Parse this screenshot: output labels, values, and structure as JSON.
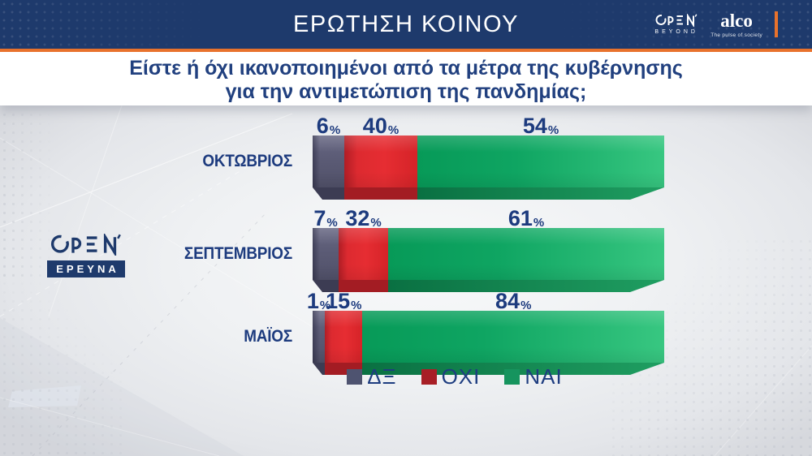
{
  "header": {
    "title": "ΕΡΩΤΗΣΗ ΚΟΙΝΟΥ",
    "open_logo": {
      "name": "OPEN",
      "sub": "BEYOND"
    },
    "alco_logo": {
      "name": "alco",
      "tagline": "The pulse of society"
    }
  },
  "question": {
    "line1": "Είστε ή όχι ικανοποιημένοι από τα μέτρα της κυβέρνησης",
    "line2": "για την αντιμετώπιση της πανδημίας;"
  },
  "side_logo": {
    "name": "OPEN",
    "badge": "ΕΡΕΥΝΑ"
  },
  "chart_data": {
    "type": "bar",
    "subtype": "horizontal-stacked",
    "title": "Είστε ή όχι ικανοποιημένοι από τα μέτρα της κυβέρνησης για την αντιμετώπιση της πανδημίας;",
    "unit": "%",
    "categories": [
      "ΟΚΤΩΒΡΙΟΣ",
      "ΣΕΠΤΕΜΒΡΙΟΣ",
      "ΜΑΪΟΣ"
    ],
    "series": [
      {
        "name": "ΔΞ",
        "color": "#585872",
        "values": [
          6,
          7,
          1
        ]
      },
      {
        "name": "ΟΧΙ",
        "color": "#dd282e",
        "values": [
          40,
          32,
          15
        ]
      },
      {
        "name": "ΝΑΙ",
        "color": "#14a463",
        "values": [
          54,
          61,
          84
        ]
      }
    ],
    "xlim": [
      0,
      100
    ],
    "grid": false,
    "legend_position": "bottom",
    "visual_widths_pct": [
      [
        9.0,
        20.8,
        70.2
      ],
      [
        7.4,
        14.1,
        78.5
      ],
      [
        3.5,
        10.7,
        85.8
      ]
    ]
  },
  "legend": {
    "items": [
      {
        "label": "ΔΞ",
        "color": "#4e5370"
      },
      {
        "label": "ΟΧΙ",
        "color": "#a81f26"
      },
      {
        "label": "ΝΑΙ",
        "color": "#16945e"
      }
    ]
  },
  "colors": {
    "header_bg": "#1e3a6c",
    "accent_orange": "#e8722c",
    "text_navy": "#1d3b7e",
    "question_text": "#21407f",
    "background": "#eceef1"
  }
}
